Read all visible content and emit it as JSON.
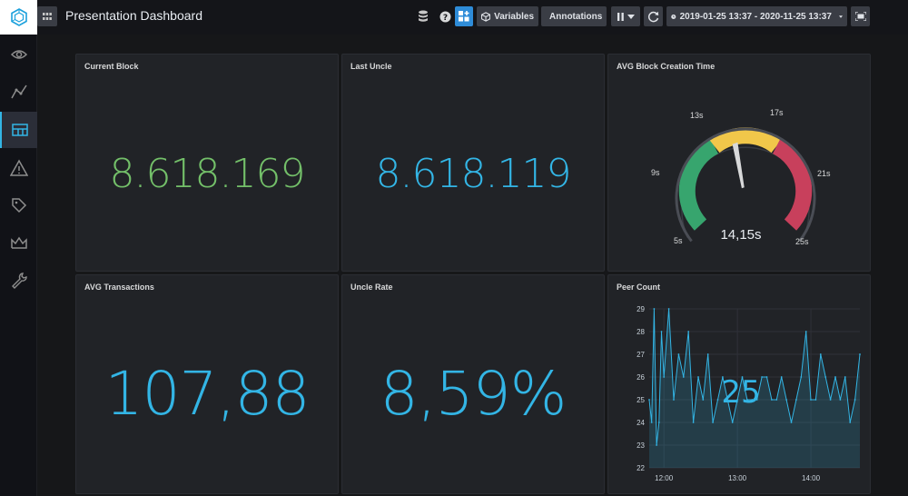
{
  "header": {
    "title": "Presentation Dashboard",
    "variables_label": "Variables",
    "annotations_label": "Annotations",
    "time_range": "2019-01-25 13:37 - 2020-11-25 13:37"
  },
  "sidebar": {
    "items": [
      {
        "name": "eye-icon"
      },
      {
        "name": "graph-icon"
      },
      {
        "name": "dashboard-icon",
        "active": true
      },
      {
        "name": "alert-icon"
      },
      {
        "name": "tags-icon"
      },
      {
        "name": "crown-icon"
      },
      {
        "name": "wrench-icon"
      }
    ]
  },
  "panels": {
    "current_block": {
      "title": "Current Block",
      "value": "8.618.169",
      "color": "#73bf69"
    },
    "last_uncle": {
      "title": "Last Uncle",
      "value": "8.618.119",
      "color": "#33b5e5"
    },
    "avg_block_time": {
      "title": "AVG Block Creation Time",
      "value": "14,15s",
      "ticks": [
        "5s",
        "9s",
        "13s",
        "17s",
        "21s",
        "25s"
      ],
      "thresholds": {
        "green": "#37a56e",
        "yellow": "#f1c74a",
        "red": "#c8405c"
      }
    },
    "avg_transactions": {
      "title": "AVG Transactions",
      "value": "107,88",
      "color": "#33b5e5"
    },
    "uncle_rate": {
      "title": "Uncle Rate",
      "value": "8,59%",
      "color": "#33b5e5"
    },
    "peer_count": {
      "title": "Peer Count",
      "value": "25",
      "y_ticks": [
        "29",
        "28",
        "27",
        "26",
        "25",
        "24",
        "23",
        "22"
      ],
      "x_ticks": [
        "12:00",
        "13:00",
        "14:00"
      ]
    }
  },
  "chart_data": {
    "type": "line",
    "title": "Peer Count",
    "x": [
      "11:48",
      "11:50",
      "11:52",
      "11:54",
      "11:56",
      "11:58",
      "12:00",
      "12:04",
      "12:08",
      "12:12",
      "12:16",
      "12:20",
      "12:24",
      "12:28",
      "12:32",
      "12:36",
      "12:40",
      "12:44",
      "12:48",
      "12:52",
      "12:56",
      "13:00",
      "13:04",
      "13:08",
      "13:12",
      "13:16",
      "13:20",
      "13:24",
      "13:28",
      "13:32",
      "13:36",
      "13:40",
      "13:44",
      "13:48",
      "13:52",
      "13:56",
      "14:00",
      "14:04",
      "14:08",
      "14:12",
      "14:16",
      "14:20",
      "14:24",
      "14:28",
      "14:32",
      "14:36",
      "14:40"
    ],
    "series": [
      {
        "values": [
          25,
          24,
          29,
          23,
          24,
          28,
          26,
          29,
          25,
          27,
          26,
          28,
          24,
          26,
          25,
          27,
          24,
          25,
          26,
          25,
          24,
          25,
          26,
          25,
          25,
          25,
          26,
          26,
          25,
          25,
          26,
          25,
          24,
          25,
          26,
          28,
          25,
          25,
          27,
          26,
          25,
          26,
          25,
          26,
          24,
          25,
          27
        ]
      }
    ],
    "xlabel": "",
    "ylabel": "",
    "ylim": [
      22,
      29
    ],
    "x_ticks": [
      "12:00",
      "13:00",
      "14:00"
    ],
    "grid": true
  }
}
